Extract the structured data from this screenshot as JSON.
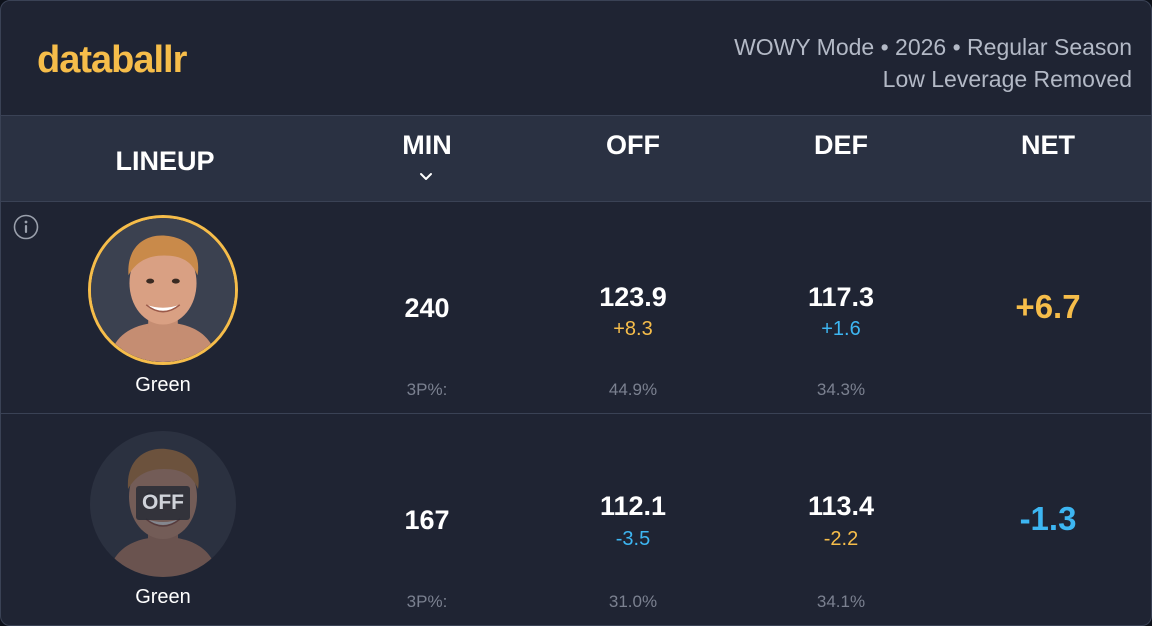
{
  "brand": {
    "name": "databallr",
    "accent": "#f6bd4a"
  },
  "meta": {
    "line1": "WOWY Mode • 2026 • Regular Season",
    "line2": "Low Leverage Removed"
  },
  "columns": {
    "lineup": "LINEUP",
    "min": "MIN",
    "off": "OFF",
    "def": "DEF",
    "net": "NET"
  },
  "sort": {
    "column": "MIN",
    "icon": "chevron-down-icon"
  },
  "colors": {
    "positive": "#f6bd4a",
    "negative": "#3db6f2"
  },
  "rows": [
    {
      "player": "Green",
      "status": "on",
      "min": "240",
      "off": "123.9",
      "off_diff": "+8.3",
      "def": "117.3",
      "def_diff": "+1.6",
      "net": "+6.7",
      "tp_label": "3P%:",
      "off_tp": "44.9%",
      "def_tp": "34.3%"
    },
    {
      "player": "Green",
      "status": "off",
      "status_label": "OFF",
      "min": "167",
      "off": "112.1",
      "off_diff": "-3.5",
      "def": "113.4",
      "def_diff": "-2.2",
      "net": "-1.3",
      "tp_label": "3P%:",
      "off_tp": "31.0%",
      "def_tp": "34.1%"
    }
  ]
}
